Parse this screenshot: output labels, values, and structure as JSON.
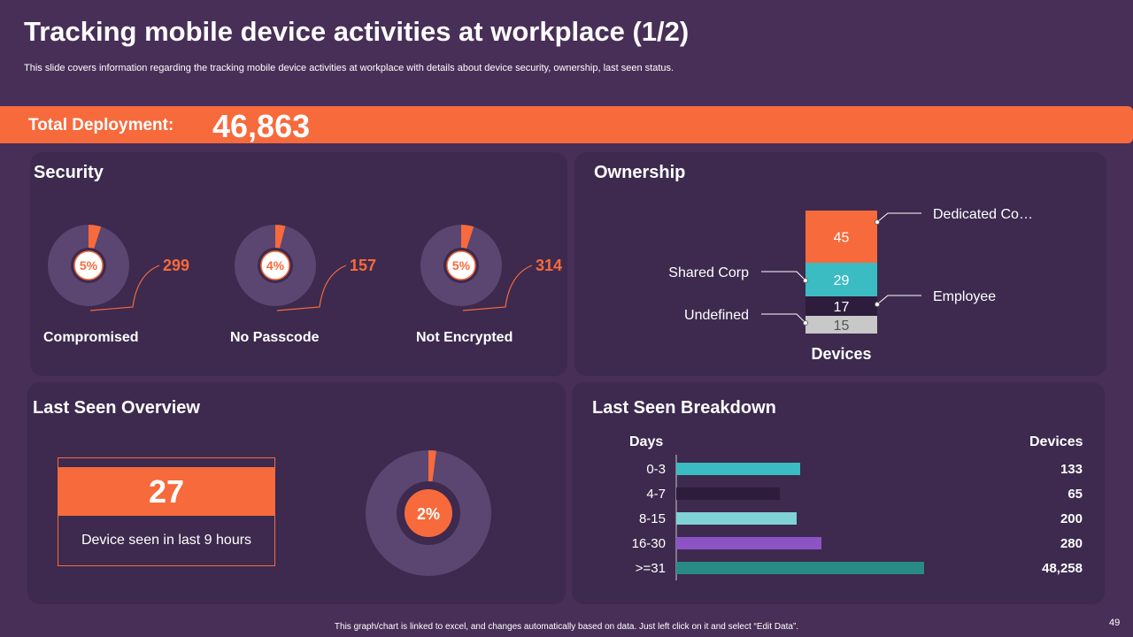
{
  "slide": {
    "title": "Tracking mobile device activities at workplace (1/2)",
    "subtitle": "This slide covers information regarding the tracking mobile device activities at workplace with details about device security, ownership, last seen status.",
    "footer": "This graph/chart is linked to excel, and changes automatically based on data. Just left click on it and select “Edit Data”.",
    "page_number": "49"
  },
  "deployment": {
    "label": "Total Deployment:",
    "value": "46,863"
  },
  "security": {
    "title": "Security",
    "items": [
      {
        "percent_label": "5%",
        "count": "299",
        "name": "Compromised"
      },
      {
        "percent_label": "4%",
        "count": "157",
        "name": "No Passcode"
      },
      {
        "percent_label": "5%",
        "count": "314",
        "name": "Not Encrypted"
      }
    ]
  },
  "ownership": {
    "title": "Ownership"
  },
  "last_seen_overview": {
    "title": "Last Seen Overview",
    "count": "27",
    "caption": "Device seen in last 9 hours",
    "percent_label": "2%"
  },
  "last_seen_breakdown": {
    "title": "Last Seen Breakdown",
    "days_header": "Days",
    "devices_header": "Devices"
  },
  "colors": {
    "background": "#482f57",
    "panel": "#3d2a4e",
    "accent": "#f76a3c",
    "teal": "#3bbcc2",
    "dark": "#2e1c3d",
    "gray": "#c8c8c8",
    "light_teal": "#7fd2d6",
    "purple": "#8c53c4",
    "dark_teal": "#2a8a86"
  },
  "chart_data": [
    {
      "type": "pie",
      "title": "Security",
      "slices": [
        {
          "label": "Compromised",
          "percent": 5,
          "value": 299
        },
        {
          "label": "No Passcode",
          "percent": 4,
          "value": 157
        },
        {
          "label": "Not Encrypted",
          "percent": 5,
          "value": 314
        }
      ]
    },
    {
      "type": "bar",
      "stacked": true,
      "title": "Ownership",
      "xlabel": "Devices",
      "categories": [
        "Devices"
      ],
      "series": [
        {
          "name": "Undefined",
          "values": [
            15
          ]
        },
        {
          "name": "Employee",
          "values": [
            17
          ]
        },
        {
          "name": "Shared Corp",
          "values": [
            29
          ]
        },
        {
          "name": "Dedicated Co…",
          "values": [
            45
          ]
        }
      ]
    },
    {
      "type": "pie",
      "title": "Last Seen Overview",
      "slices": [
        {
          "label": "Device seen in last 9 hours",
          "percent": 2,
          "value": 27
        }
      ]
    },
    {
      "type": "bar",
      "orientation": "horizontal",
      "title": "Last Seen Breakdown",
      "xlabel": "Devices",
      "ylabel": "Days",
      "categories": [
        "0-3",
        "4-7",
        "8-15",
        "16-30",
        ">=31"
      ],
      "values": [
        133,
        65,
        200,
        280,
        48258
      ],
      "value_labels": [
        "133",
        "65",
        "200",
        "280",
        "48,258"
      ],
      "note": "bar lengths are drawn as in the original (not linear to values)",
      "drawn_lengths": [
        140,
        117,
        136,
        164,
        280
      ]
    }
  ]
}
